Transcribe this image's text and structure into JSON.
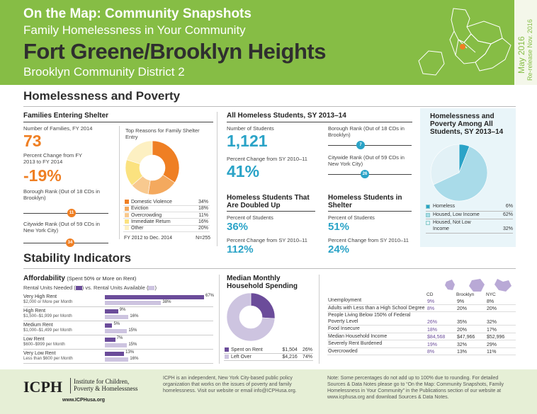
{
  "header": {
    "series": "On the Map: Community Snapshots",
    "topic": "Family Homelessness in Your Community",
    "neighborhood": "Fort Greene/Brooklyn Heights",
    "district": "Brooklyn Community District 2",
    "date": "May 2016",
    "rerelease": "Re-release Nov. 2016"
  },
  "hp": {
    "title": "Homelessness and Poverty"
  },
  "families": {
    "title": "Families Entering Shelter",
    "num_label": "Number of Families, FY 2014",
    "num": "73",
    "pct_label": "Percent Change from FY 2013 to FY 2014",
    "pct": "-19%",
    "borough_label": "Borough Rank (Out of 18 CDs in Brooklyn)",
    "borough_rank": "11",
    "citywide_label": "Citywide Rank (Out of 59 CDs in New York City)",
    "citywide_rank": "34"
  },
  "reasons": {
    "title": "Top Reasons for Family Shelter Entry",
    "rows": [
      {
        "label": "Domestic Violence",
        "value": "34%",
        "color": "#ef7f23"
      },
      {
        "label": "Eviction",
        "value": "18%",
        "color": "#f4a95e"
      },
      {
        "label": "Overcrowding",
        "value": "11%",
        "color": "#f8c98f"
      },
      {
        "label": "Immediate Return",
        "value": "16%",
        "color": "#fbe27f"
      },
      {
        "label": "Other",
        "value": "20%",
        "color": "#fdf0c2"
      }
    ],
    "foot_left": "FY 2012 to Dec. 2014",
    "foot_right": "N=255"
  },
  "students": {
    "title": "All Homeless Students, SY 2013–14",
    "num_label": "Number of Students",
    "num": "1,121",
    "pct_label": "Percent Change from SY 2010–11",
    "pct": "41%",
    "borough_label": "Borough Rank (Out of 18 CDs in Brooklyn)",
    "borough_rank": "7",
    "citywide_label": "Citywide Rank (Out of 59 CDs in New York City)",
    "citywide_rank": "26"
  },
  "doubled": {
    "title": "Homeless Students That Are Doubled Up",
    "pct_label": "Percent of Students",
    "pct": "36%",
    "chg_label": "Percent Change from SY 2010–11",
    "chg": "112%"
  },
  "shelter": {
    "title": "Homeless Students in Shelter",
    "pct_label": "Percent of Students",
    "pct": "51%",
    "chg_label": "Percent Change from SY 2010–11",
    "chg": "24%"
  },
  "poverty": {
    "title": "Homelessness and Poverty Among All Students, SY 2013–14",
    "rows": [
      {
        "label": "Homeless",
        "value": "6%",
        "color": "#2aa3c7"
      },
      {
        "label": "Housed, Low Income",
        "value": "62%",
        "color": "#a9dbe9"
      },
      {
        "label": "Housed, Not Low Income",
        "value": "32%",
        "color": "#e2f1f6"
      }
    ]
  },
  "stab": {
    "title": "Stability Indicators"
  },
  "aff": {
    "title": "Affordability",
    "title_suffix": "(Spent 50% or More on Rent)",
    "sub_a": "Rental Units Needed (",
    "sub_b": ") vs. Rental Units Available (",
    "sub_c": ")",
    "needed_color": "#6b4c9a",
    "avail_color": "#cdc4e0",
    "rows": [
      {
        "label": "Very High Rent",
        "range": "$2,000 or More per Month",
        "needed": 67,
        "available": 38
      },
      {
        "label": "High Rent",
        "range": "$1,500–$1,999 per Month",
        "needed": 9,
        "available": 16
      },
      {
        "label": "Medium Rent",
        "range": "$1,000–$1,499 per Month",
        "needed": 5,
        "available": 15
      },
      {
        "label": "Low Rent",
        "range": "$600–$999 per Month",
        "needed": 7,
        "available": 15
      },
      {
        "label": "Very Low Rent",
        "range": "Less than $600 per Month",
        "needed": 13,
        "available": 16
      }
    ]
  },
  "spending": {
    "title": "Median Monthly Household Spending",
    "rows": [
      {
        "label": "Spent on Rent",
        "amount": "$1,504",
        "pct": "26%",
        "color": "#6b4c9a"
      },
      {
        "label": "Left Over",
        "amount": "$4,216",
        "pct": "74%",
        "color": "#cdc4e0"
      }
    ]
  },
  "indicators": {
    "cols": [
      "CD",
      "Brooklyn",
      "NYC"
    ],
    "rows": [
      {
        "label": "Unemployment",
        "cd": "9%",
        "bk": "9%",
        "nyc": "8%"
      },
      {
        "label": "Adults with Less than a High School Degree",
        "cd": "8%",
        "bk": "20%",
        "nyc": "20%"
      },
      {
        "label": "People Living Below 150% of Federal Poverty Level",
        "cd": "26%",
        "bk": "35%",
        "nyc": "32%"
      },
      {
        "label": "Food Insecure",
        "cd": "18%",
        "bk": "20%",
        "nyc": "17%"
      },
      {
        "label": "Median Household Income",
        "cd": "$84,568",
        "bk": "$47,966",
        "nyc": "$52,996"
      },
      {
        "label": "Severely Rent Burdened",
        "cd": "19%",
        "bk": "32%",
        "nyc": "29%"
      },
      {
        "label": "Overcrowded",
        "cd": "8%",
        "bk": "13%",
        "nyc": "11%"
      }
    ]
  },
  "footer": {
    "logo": "ICPH",
    "org1": "Institute for Children,",
    "org2": "Poverty & Homelessness",
    "url": "www.ICPHusa.org",
    "about": "ICPH is an independent, New York City-based public policy organization that works on the issues of poverty and family homelessness. Visit our website or email info@ICPHusa.org.",
    "note": "Note: Some percentages do not add up to 100% due to rounding. For detailed Sources & Data Notes please go to “On the Map: Community Snapshots, Family Homelessness in Your Community” in the Publications section of our website at www.icphusa.org and download Sources & Data Notes."
  }
}
